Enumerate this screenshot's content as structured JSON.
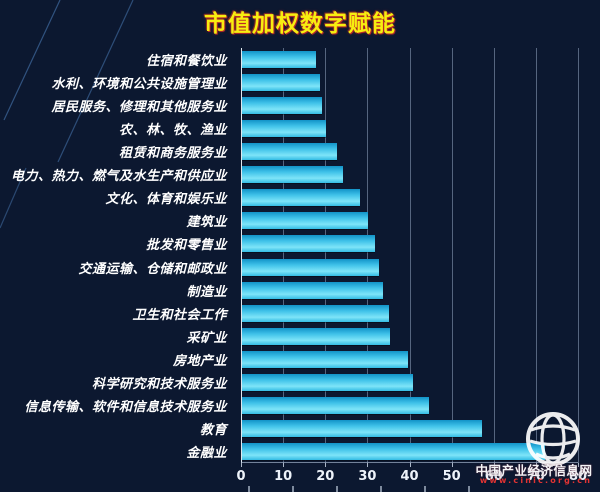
{
  "chart_data": {
    "type": "bar",
    "orientation": "horizontal",
    "title": "市值加权数字赋能",
    "title_color": "#f7ee10",
    "categories": [
      "住宿和餐饮业",
      "水利、环境和公共设施管理业",
      "居民服务、修理和其他服务业",
      "农、林、牧、渔业",
      "租赁和商务服务业",
      "电力、热力、燃气及水生产和供应业",
      "文化、体育和娱乐业",
      "建筑业",
      "批发和零售业",
      "交通运输、仓储和邮政业",
      "制造业",
      "卫生和社会工作",
      "采矿业",
      "房地产业",
      "科学研究和技术服务业",
      "信息传输、软件和信息技术服务业",
      "教育",
      "金融业"
    ],
    "values": [
      17.5,
      18.5,
      19,
      20,
      22.5,
      24,
      28,
      30,
      31.5,
      32.5,
      33.5,
      34.8,
      35.2,
      39.5,
      40.5,
      44.5,
      57,
      72
    ],
    "xlim": [
      0,
      80
    ],
    "x_ticks": [
      0,
      10,
      20,
      30,
      40,
      50,
      60,
      70,
      80
    ],
    "grid": "vertical-gridlines",
    "legend": "none",
    "bar_color": "#35c0e8",
    "background_color": "#0c1830",
    "label_color": "#ffffff"
  },
  "watermark": {
    "site_name": "中国产业经济信息网",
    "site_url": "www.cinic.org.cn"
  }
}
